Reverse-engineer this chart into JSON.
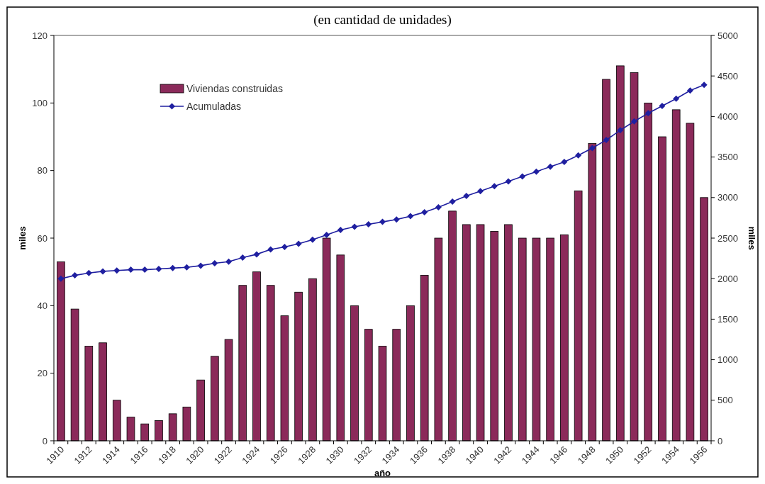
{
  "chart_data": {
    "type": "bar",
    "title": "(en cantidad de unidades)",
    "xlabel": "año",
    "ylabel": "miles",
    "y2label": "miles",
    "categories": [
      "1910",
      null,
      "1912",
      null,
      "1914",
      null,
      "1916",
      null,
      "1918",
      null,
      "1920",
      null,
      "1922",
      null,
      "1924",
      null,
      "1926",
      null,
      "1928",
      null,
      "1930",
      null,
      "1932",
      null,
      "1934",
      null,
      "1936",
      null,
      "1938",
      null,
      "1940",
      null,
      "1942",
      null,
      "1944",
      null,
      "1946",
      null,
      "1948",
      null,
      "1950",
      null,
      "1952",
      null,
      "1954",
      null,
      "1956"
    ],
    "series": [
      {
        "name": "Viviendas construidas",
        "color": "#8b2a5a",
        "values": [
          53,
          39,
          28,
          29,
          12,
          7,
          5,
          6,
          8,
          10,
          18,
          25,
          30,
          46,
          50,
          46,
          37,
          44,
          48,
          60,
          55,
          40,
          33,
          28,
          33,
          40,
          49,
          60,
          68,
          64,
          64,
          62,
          64,
          60,
          60,
          60,
          61,
          74,
          88,
          107,
          111,
          109,
          100,
          90,
          98,
          94,
          72
        ]
      },
      {
        "name": "Acumuladas",
        "type": "line",
        "axis": "y2",
        "color": "#1f1fa0",
        "marker": "diamond",
        "values": [
          2000,
          2040,
          2070,
          2090,
          2100,
          2110,
          2110,
          2120,
          2130,
          2140,
          2160,
          2190,
          2210,
          2260,
          2300,
          2360,
          2390,
          2430,
          2480,
          2540,
          2600,
          2640,
          2670,
          2700,
          2730,
          2770,
          2820,
          2880,
          2950,
          3020,
          3080,
          3140,
          3200,
          3260,
          3320,
          3380,
          3440,
          3520,
          3610,
          3710,
          3830,
          3940,
          4040,
          4130,
          4220,
          4320,
          4390
        ]
      }
    ],
    "ylim": [
      0,
      120
    ],
    "yticks": [
      0,
      20,
      40,
      60,
      80,
      100,
      120
    ],
    "y2lim": [
      0,
      5000
    ],
    "y2ticks": [
      0,
      500,
      1000,
      1500,
      2000,
      2500,
      3000,
      3500,
      4000,
      4500,
      5000
    ],
    "legend": "top left",
    "grid": false
  }
}
